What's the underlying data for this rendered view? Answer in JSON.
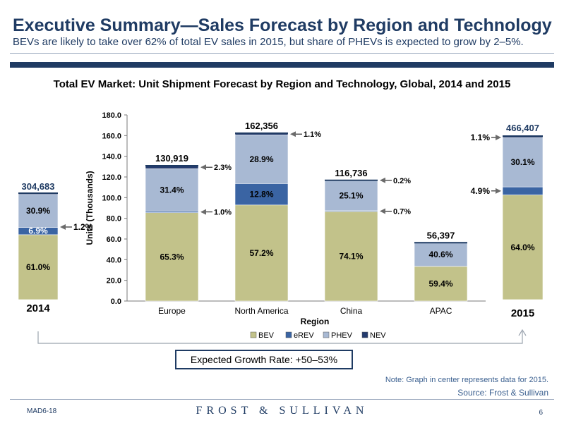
{
  "header": {
    "title": "Executive Summary—Sales Forecast by Region and Technology",
    "subtitle": "BEVs are likely to take over 62% of total EV sales in 2015, but share of PHEVs is expected to grow by 2–5%."
  },
  "chart_title": "Total EV Market: Unit Shipment Forecast by Region and Technology, Global, 2014 and 2015",
  "colors": {
    "BEV": "#c2c28a",
    "eREV": "#3a64a3",
    "PHEV": "#a8b9d3",
    "NEV": "#243b6e",
    "navy": "#1f3b63"
  },
  "chart_data": [
    {
      "type": "bar",
      "stacked": true,
      "title": "",
      "xlabel": "Region",
      "ylabel": "Units (Thousands)",
      "ylim": [
        0,
        180
      ],
      "yticks": [
        "0.0",
        "20.0",
        "40.0",
        "60.0",
        "80.0",
        "100.0",
        "120.0",
        "140.0",
        "160.0",
        "180.0"
      ],
      "categories": [
        "Europe",
        "North America",
        "China",
        "APAC"
      ],
      "totals": [
        "130,919",
        "162,356",
        "116,736",
        "56,397"
      ],
      "total_values": [
        130.919,
        162.356,
        116.736,
        56.397
      ],
      "series": [
        {
          "name": "BEV",
          "shares": [
            65.3,
            57.2,
            74.1,
            59.4
          ],
          "labels": [
            "65.3%",
            "57.2%",
            "74.1%",
            "59.4%"
          ]
        },
        {
          "name": "eREV",
          "shares": [
            1.0,
            12.8,
            0.7,
            0
          ],
          "labels": [
            "1.0%",
            "12.8%",
            "0.7%",
            ""
          ]
        },
        {
          "name": "PHEV",
          "shares": [
            31.4,
            28.9,
            25.1,
            40.6
          ],
          "labels": [
            "31.4%",
            "28.9%",
            "25.1%",
            "40.6%"
          ]
        },
        {
          "name": "NEV",
          "shares": [
            2.3,
            1.1,
            0.2,
            0
          ],
          "labels": [
            "2.3%",
            "1.1%",
            "0.2%",
            ""
          ]
        }
      ],
      "legend": [
        "BEV",
        "eREV",
        "PHEV",
        "NEV"
      ],
      "legend_position": "bottom",
      "grid": false
    },
    {
      "type": "bar",
      "stacked": true,
      "categories": [
        "2014"
      ],
      "totals": [
        "304,683"
      ],
      "series": [
        {
          "name": "BEV",
          "shares": [
            61.0
          ],
          "labels": [
            "61.0%"
          ]
        },
        {
          "name": "eREV",
          "shares": [
            6.9
          ],
          "labels": [
            "6.9%"
          ]
        },
        {
          "name": "PHEV",
          "shares": [
            30.9
          ],
          "labels": [
            "30.9%"
          ]
        },
        {
          "name": "NEV",
          "shares": [
            1.2
          ],
          "labels": [
            "1.2%"
          ]
        }
      ]
    },
    {
      "type": "bar",
      "stacked": true,
      "categories": [
        "2015"
      ],
      "totals": [
        "466,407"
      ],
      "series": [
        {
          "name": "BEV",
          "shares": [
            64.0
          ],
          "labels": [
            "64.0%"
          ]
        },
        {
          "name": "eREV",
          "shares": [
            4.9
          ],
          "labels": [
            "4.9%"
          ]
        },
        {
          "name": "PHEV",
          "shares": [
            30.1
          ],
          "labels": [
            "30.1%"
          ]
        },
        {
          "name": "NEV",
          "shares": [
            1.1
          ],
          "labels": [
            "1.1%"
          ]
        }
      ]
    }
  ],
  "growth_rate": "Expected Growth Rate: +50–53%",
  "note": "Note: Graph in center represents data for 2015.",
  "source": "Source: Frost & Sullivan",
  "footer": {
    "code": "MAD6-18",
    "brand": "FROST & SULLIVAN",
    "page": "6"
  }
}
